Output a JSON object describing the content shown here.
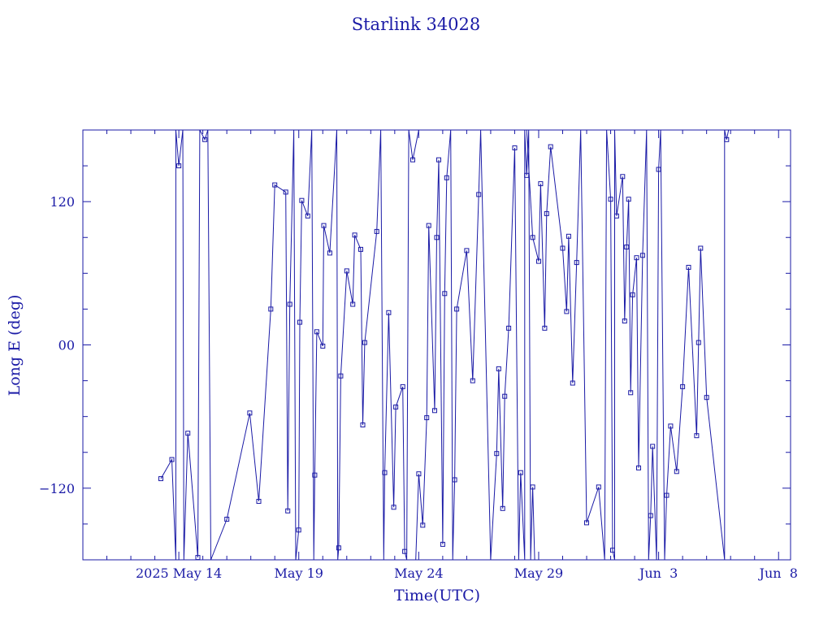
{
  "chart_data": {
    "type": "line",
    "title": "Starlink 34028",
    "xlabel": "Time(UTC)",
    "ylabel": "Long E (deg)",
    "xlim": [
      "2025-05-10T00:00",
      "2025-06-08T12:00"
    ],
    "ylim": [
      -180,
      180
    ],
    "x_ticks": [
      {
        "x": "2025-05-14",
        "label": "2025 May 14"
      },
      {
        "x": "2025-05-19",
        "label": "May 19"
      },
      {
        "x": "2025-05-24",
        "label": "May 24"
      },
      {
        "x": "2025-05-29",
        "label": "May 29"
      },
      {
        "x": "2025-06-03",
        "label": "Jun  3"
      },
      {
        "x": "2025-06-08",
        "label": "Jun  8"
      }
    ],
    "y_ticks": [
      {
        "y": 120,
        "label": "120"
      },
      {
        "y": 0,
        "label": "00"
      },
      {
        "y": -120,
        "label": "−120"
      }
    ],
    "grid": false,
    "colors": {
      "line": "#1a1aa6",
      "text": "#1a1aa6"
    },
    "series": [
      {
        "points": [
          {
            "x": "2025-05-13T06:00",
            "y": -112
          },
          {
            "x": "2025-05-13T17:00",
            "y": -96
          },
          {
            "x": "2025-05-13T21:00",
            "y": -180
          },
          {
            "x": "2025-05-13T21:00",
            "y": 180
          },
          {
            "x": "2025-05-14T00:00",
            "y": 150
          },
          {
            "x": "2025-05-14T04:00",
            "y": 180
          },
          {
            "x": "2025-05-14T05:00",
            "y": -180
          },
          {
            "x": "2025-05-14T09:00",
            "y": -74
          },
          {
            "x": "2025-05-14T19:00",
            "y": -178
          },
          {
            "x": "2025-05-14T21:00",
            "y": 180
          },
          {
            "x": "2025-05-15T02:00",
            "y": 172
          },
          {
            "x": "2025-05-15T05:00",
            "y": 180
          },
          {
            "x": "2025-05-15T08:00",
            "y": -180
          },
          {
            "x": "2025-05-16T00:00",
            "y": -146
          },
          {
            "x": "2025-05-16T23:00",
            "y": -57
          },
          {
            "x": "2025-05-17T08:00",
            "y": -131
          },
          {
            "x": "2025-05-17T20:00",
            "y": 30
          },
          {
            "x": "2025-05-18T00:00",
            "y": 134
          },
          {
            "x": "2025-05-18T11:00",
            "y": 128
          },
          {
            "x": "2025-05-18T13:00",
            "y": -139
          },
          {
            "x": "2025-05-18T15:00",
            "y": 34
          },
          {
            "x": "2025-05-18T19:00",
            "y": 180
          },
          {
            "x": "2025-05-18T21:00",
            "y": -180
          },
          {
            "x": "2025-05-19T00:00",
            "y": -155
          },
          {
            "x": "2025-05-19T01:00",
            "y": 19
          },
          {
            "x": "2025-05-19T03:00",
            "y": 121
          },
          {
            "x": "2025-05-19T09:00",
            "y": 108
          },
          {
            "x": "2025-05-19T13:00",
            "y": 180
          },
          {
            "x": "2025-05-19T15:00",
            "y": -180
          },
          {
            "x": "2025-05-19T16:00",
            "y": -109
          },
          {
            "x": "2025-05-19T18:00",
            "y": 11
          },
          {
            "x": "2025-05-20T00:00",
            "y": -1
          },
          {
            "x": "2025-05-20T01:00",
            "y": 100
          },
          {
            "x": "2025-05-20T07:00",
            "y": 77
          },
          {
            "x": "2025-05-20T14:00",
            "y": 180
          },
          {
            "x": "2025-05-20T15:00",
            "y": -180
          },
          {
            "x": "2025-05-20T16:00",
            "y": -170
          },
          {
            "x": "2025-05-20T18:00",
            "y": -26
          },
          {
            "x": "2025-05-21T00:00",
            "y": 62
          },
          {
            "x": "2025-05-21T06:00",
            "y": 34
          },
          {
            "x": "2025-05-21T08:00",
            "y": 92
          },
          {
            "x": "2025-05-21T14:00",
            "y": 80
          },
          {
            "x": "2025-05-21T16:00",
            "y": -67
          },
          {
            "x": "2025-05-21T18:00",
            "y": 2
          },
          {
            "x": "2025-05-22T06:00",
            "y": 95
          },
          {
            "x": "2025-05-22T10:00",
            "y": 180
          },
          {
            "x": "2025-05-22T13:00",
            "y": -180
          },
          {
            "x": "2025-05-22T14:00",
            "y": -107
          },
          {
            "x": "2025-05-22T18:00",
            "y": 27
          },
          {
            "x": "2025-05-22T23:00",
            "y": -136
          },
          {
            "x": "2025-05-23T01:00",
            "y": -52
          },
          {
            "x": "2025-05-23T08:00",
            "y": -35
          },
          {
            "x": "2025-05-23T10:00",
            "y": -173
          },
          {
            "x": "2025-05-23T12:00",
            "y": -180
          },
          {
            "x": "2025-05-23T14:00",
            "y": 180
          },
          {
            "x": "2025-05-23T18:00",
            "y": 155
          },
          {
            "x": "2025-05-24T00:00",
            "y": 180
          }
        ]
      },
      {
        "points": [
          {
            "x": "2025-05-23T21:00",
            "y": -180
          },
          {
            "x": "2025-05-24T00:00",
            "y": -108
          },
          {
            "x": "2025-05-24T04:00",
            "y": -151
          },
          {
            "x": "2025-05-24T08:00",
            "y": -61
          },
          {
            "x": "2025-05-24T10:00",
            "y": 100
          },
          {
            "x": "2025-05-24T16:00",
            "y": -55
          },
          {
            "x": "2025-05-24T18:00",
            "y": 90
          },
          {
            "x": "2025-05-24T20:00",
            "y": 155
          },
          {
            "x": "2025-05-25T00:00",
            "y": -167
          },
          {
            "x": "2025-05-25T02:00",
            "y": 43
          },
          {
            "x": "2025-05-25T04:00",
            "y": 140
          },
          {
            "x": "2025-05-25T08:00",
            "y": 180
          },
          {
            "x": "2025-05-25T10:00",
            "y": -180
          },
          {
            "x": "2025-05-25T12:00",
            "y": -113
          },
          {
            "x": "2025-05-25T14:00",
            "y": 30
          },
          {
            "x": "2025-05-26T00:00",
            "y": 79
          },
          {
            "x": "2025-05-26T06:00",
            "y": -30
          },
          {
            "x": "2025-05-26T12:00",
            "y": 126
          },
          {
            "x": "2025-05-26T14:00",
            "y": 180
          },
          {
            "x": "2025-05-27T00:00",
            "y": -180
          },
          {
            "x": "2025-05-27T06:00",
            "y": -91
          },
          {
            "x": "2025-05-27T08:00",
            "y": -20
          },
          {
            "x": "2025-05-27T12:00",
            "y": -137
          },
          {
            "x": "2025-05-27T14:00",
            "y": -43
          },
          {
            "x": "2025-05-27T18:00",
            "y": 14
          },
          {
            "x": "2025-05-28T00:00",
            "y": 165
          },
          {
            "x": "2025-05-28T04:00",
            "y": -180
          },
          {
            "x": "2025-05-28T06:00",
            "y": -107
          },
          {
            "x": "2025-05-28T10:00",
            "y": -180
          },
          {
            "x": "2025-05-28T10:00",
            "y": 180
          },
          {
            "x": "2025-05-28T12:00",
            "y": 142
          },
          {
            "x": "2025-05-28T14:00",
            "y": 180
          },
          {
            "x": "2025-05-28T16:00",
            "y": -180
          },
          {
            "x": "2025-05-28T18:00",
            "y": -119
          },
          {
            "x": "2025-05-28T20:00",
            "y": -180
          }
        ]
      },
      {
        "points": [
          {
            "x": "2025-05-28T12:00",
            "y": 180
          },
          {
            "x": "2025-05-28T18:00",
            "y": 90
          },
          {
            "x": "2025-05-29T00:00",
            "y": 70
          },
          {
            "x": "2025-05-29T02:00",
            "y": 135
          },
          {
            "x": "2025-05-29T06:00",
            "y": 14
          },
          {
            "x": "2025-05-29T08:00",
            "y": 110
          },
          {
            "x": "2025-05-29T12:00",
            "y": 166
          },
          {
            "x": "2025-05-30T00:00",
            "y": 81
          },
          {
            "x": "2025-05-30T04:00",
            "y": 28
          },
          {
            "x": "2025-05-30T06:00",
            "y": 91
          },
          {
            "x": "2025-05-30T10:00",
            "y": -32
          },
          {
            "x": "2025-05-30T14:00",
            "y": 69
          },
          {
            "x": "2025-05-30T18:00",
            "y": 180
          },
          {
            "x": "2025-05-31T00:00",
            "y": -149
          },
          {
            "x": "2025-05-31T12:00",
            "y": -119
          },
          {
            "x": "2025-05-31T18:00",
            "y": -180
          },
          {
            "x": "2025-05-31T20:00",
            "y": 180
          },
          {
            "x": "2025-06-01T00:00",
            "y": 122
          },
          {
            "x": "2025-06-01T02:00",
            "y": -172
          },
          {
            "x": "2025-06-01T04:00",
            "y": -180
          },
          {
            "x": "2025-06-01T04:00",
            "y": 180
          },
          {
            "x": "2025-06-01T06:00",
            "y": 108
          },
          {
            "x": "2025-06-01T12:00",
            "y": 141
          },
          {
            "x": "2025-06-01T14:00",
            "y": 20
          },
          {
            "x": "2025-06-01T16:00",
            "y": 82
          },
          {
            "x": "2025-06-01T18:00",
            "y": 122
          },
          {
            "x": "2025-06-01T20:00",
            "y": -40
          },
          {
            "x": "2025-06-01T22:00",
            "y": 42
          },
          {
            "x": "2025-06-02T02:00",
            "y": 73
          },
          {
            "x": "2025-06-02T04:00",
            "y": -103
          },
          {
            "x": "2025-06-02T08:00",
            "y": 75
          },
          {
            "x": "2025-06-02T12:00",
            "y": 180
          },
          {
            "x": "2025-06-02T14:00",
            "y": -180
          },
          {
            "x": "2025-06-02T16:00",
            "y": -143
          },
          {
            "x": "2025-06-02T18:00",
            "y": -85
          },
          {
            "x": "2025-06-02T22:00",
            "y": -180
          },
          {
            "x": "2025-06-03T00:00",
            "y": 147
          },
          {
            "x": "2025-06-03T02:00",
            "y": 180
          },
          {
            "x": "2025-06-03T06:00",
            "y": -180
          },
          {
            "x": "2025-06-03T08:00",
            "y": -126
          },
          {
            "x": "2025-06-03T12:00",
            "y": -68
          },
          {
            "x": "2025-06-03T18:00",
            "y": -106
          },
          {
            "x": "2025-06-04T00:00",
            "y": -35
          },
          {
            "x": "2025-06-04T06:00",
            "y": 65
          },
          {
            "x": "2025-06-04T14:00",
            "y": -76
          },
          {
            "x": "2025-06-04T16:00",
            "y": 2
          },
          {
            "x": "2025-06-04T18:00",
            "y": 81
          },
          {
            "x": "2025-06-05T00:00",
            "y": -44
          },
          {
            "x": "2025-06-05T18:00",
            "y": -180
          },
          {
            "x": "2025-06-05T18:00",
            "y": 180
          },
          {
            "x": "2025-06-05T20:00",
            "y": 172
          },
          {
            "x": "2025-06-05T22:00",
            "y": 180
          }
        ]
      }
    ]
  }
}
